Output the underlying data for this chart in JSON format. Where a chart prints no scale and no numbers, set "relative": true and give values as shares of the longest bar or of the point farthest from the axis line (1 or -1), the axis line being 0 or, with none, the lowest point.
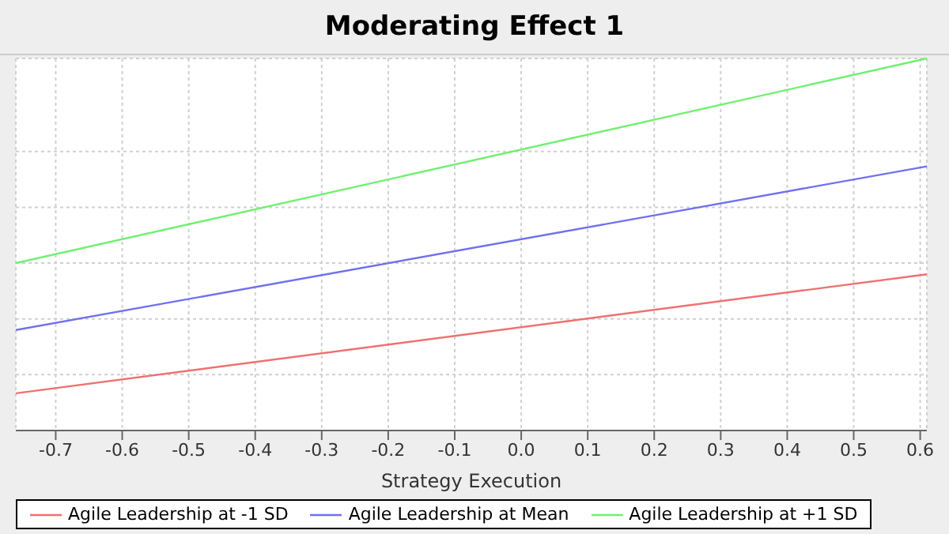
{
  "chart_data": {
    "type": "line",
    "title": "Moderating Effect 1",
    "xlabel": "Strategy Execution",
    "x": [
      -0.76,
      0.61
    ],
    "relative": true,
    "series": [
      {
        "name": "Agile Leadership at -1 SD",
        "color": "#f07070",
        "values": [
          0.1,
          0.42
        ]
      },
      {
        "name": "Agile Leadership at Mean",
        "color": "#7070f0",
        "values": [
          0.27,
          0.71
        ]
      },
      {
        "name": "Agile Leadership at +1 SD",
        "color": "#70f070",
        "values": [
          0.45,
          1
        ]
      }
    ],
    "xlim": [
      -0.76,
      0.61
    ],
    "xticks": [
      -0.7,
      -0.6,
      -0.5,
      -0.4,
      -0.3,
      -0.2,
      -0.1,
      {
        "value": 0,
        "label": "0.0"
      },
      0.1,
      0.2,
      0.3,
      0.4,
      0.5,
      0.6
    ],
    "grid": true,
    "legend": "bottom",
    "marker": "none",
    "line_style": "solid"
  }
}
